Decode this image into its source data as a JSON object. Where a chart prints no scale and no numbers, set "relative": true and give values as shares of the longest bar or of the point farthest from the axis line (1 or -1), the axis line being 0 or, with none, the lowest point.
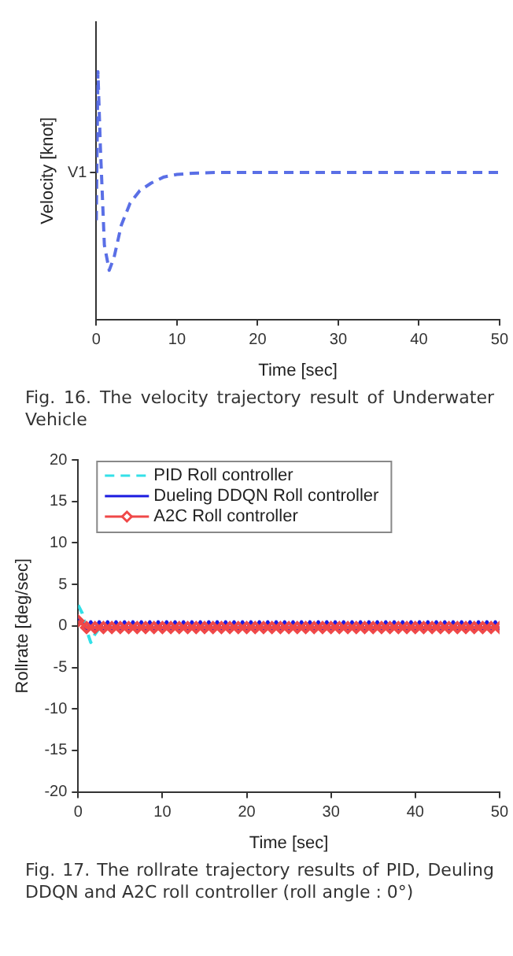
{
  "chart_data": [
    {
      "type": "line",
      "relative": true,
      "xlabel": "Time [sec]",
      "ylabel": "Velocity [knot]",
      "xlim": [
        0,
        50
      ],
      "xticks": [
        0,
        10,
        20,
        30,
        40,
        50
      ],
      "grid": false,
      "legend": false,
      "line_style": "dashed",
      "marker": "none",
      "annotations": [
        "V1",
        "Fig. 16. The velocity trajectory result of Underwater Vehicle"
      ],
      "series": [
        {
          "color": "#5a6fe6",
          "x": [
            0,
            0.2,
            0.5,
            1.0,
            1.6,
            2.2,
            3.1,
            4.2,
            5.4,
            6.8,
            8.4,
            10,
            12,
            15,
            20,
            30,
            40,
            50
          ],
          "values": [
            0.4,
            1.0,
            0.7,
            0.3,
            0.198,
            0.25,
            0.38,
            0.47,
            0.52,
            0.55,
            0.575,
            0.585,
            0.59,
            0.593,
            0.593,
            0.593,
            0.593,
            0.593
          ]
        }
      ]
    },
    {
      "type": "line",
      "xlabel": "Time [sec]",
      "ylabel": "Rollrate [deg/sec]",
      "xlim": [
        0,
        50
      ],
      "xticks": [
        0,
        10,
        20,
        30,
        40,
        50
      ],
      "ylim": [
        -20,
        20
      ],
      "yticks": [
        -20,
        -15,
        -10,
        -5,
        0,
        5,
        10,
        15,
        20
      ],
      "grid": false,
      "legend": "top left",
      "annotations": [
        "Fig. 17. The rollrate trajectory results of PID, Deuling DDQN and A2C roll controller (roll angle : 0°)"
      ],
      "series": [
        {
          "name": "PID Roll controller",
          "color": "#33e0e8",
          "line_style": "dashed",
          "marker": "none",
          "x": [
            0,
            0.5,
            1,
            1.5,
            2,
            2.5,
            3
          ],
          "values": [
            2.5,
            1.5,
            -0.5,
            -2,
            -1,
            -0.3,
            0
          ]
        },
        {
          "name": "Dueling DDQN Roll controller",
          "color": "#1a1ae0",
          "line_style": "solid",
          "marker": "none",
          "x": [
            0,
            0.5,
            1,
            1.5,
            2,
            2.5,
            3,
            3.5,
            4,
            4.5,
            5,
            5.5,
            6,
            6.5,
            7,
            7.5,
            8,
            8.5,
            9,
            9.5,
            10,
            10.5,
            11,
            11.5,
            12,
            12.5,
            13,
            13.5,
            14,
            14.5,
            15,
            15.5,
            16,
            16.5,
            17,
            17.5,
            18,
            18.5,
            19,
            19.5,
            20,
            20.5,
            21,
            21.5,
            22,
            22.5,
            23,
            23.5,
            24,
            24.5,
            25,
            25.5,
            26,
            26.5,
            27,
            27.5,
            28,
            28.5,
            29,
            29.5,
            30,
            30.5,
            31,
            31.5,
            32,
            32.5,
            33,
            33.5,
            34,
            34.5,
            35,
            35.5,
            36,
            36.5,
            37,
            37.5,
            38,
            38.5,
            39,
            39.5,
            40,
            40.5,
            41,
            41.5,
            42,
            42.5,
            43,
            43.5,
            44,
            44.5,
            45,
            45.5,
            46,
            46.5,
            47,
            47.5,
            48,
            48.5,
            49,
            49.5,
            50
          ],
          "values": [
            1.0,
            0.3,
            -0.5,
            0.5,
            -0.5,
            0.5,
            -0.5,
            0.5,
            -0.5,
            0.5,
            -0.5,
            0.5,
            -0.5,
            0.5,
            -0.5,
            0.5,
            -0.5,
            0.5,
            -0.5,
            0.5,
            -0.5,
            0.5,
            -0.5,
            0.5,
            -0.5,
            0.5,
            -0.5,
            0.5,
            -0.5,
            0.5,
            -0.5,
            0.5,
            -0.5,
            0.5,
            -0.5,
            0.5,
            -0.5,
            0.5,
            -0.5,
            0.5,
            -0.5,
            0.5,
            -0.5,
            0.5,
            -0.5,
            0.5,
            -0.5,
            0.5,
            -0.5,
            0.5,
            -0.5,
            0.5,
            -0.5,
            0.5,
            -0.5,
            0.5,
            -0.5,
            0.5,
            -0.5,
            0.5,
            -0.5,
            0.5,
            -0.5,
            0.5,
            -0.5,
            0.5,
            -0.5,
            0.5,
            -0.5,
            0.5,
            -0.5,
            0.5,
            -0.5,
            0.5,
            -0.5,
            0.5,
            -0.5,
            0.5,
            -0.5,
            0.5,
            -0.5,
            0.5,
            -0.5,
            0.5,
            -0.5,
            0.5,
            -0.5,
            0.5,
            -0.5,
            0.5,
            -0.5,
            0.5,
            -0.5,
            0.5,
            -0.5,
            0.5,
            -0.5,
            0.5,
            -0.5,
            0.5,
            -0.5
          ]
        },
        {
          "name": "A2C Roll controller",
          "color": "#f04848",
          "line_style": "solid",
          "marker": "diamond",
          "x": [
            0,
            1,
            2,
            3,
            4,
            5,
            6,
            7,
            8,
            9,
            10,
            11,
            12,
            13,
            14,
            15,
            16,
            17,
            18,
            19,
            20,
            21,
            22,
            23,
            24,
            25,
            26,
            27,
            28,
            29,
            30,
            31,
            32,
            33,
            34,
            35,
            36,
            37,
            38,
            39,
            40,
            41,
            42,
            43,
            44,
            45,
            46,
            47,
            48,
            49,
            50
          ],
          "values": [
            0.6,
            -0.2,
            -0.2,
            -0.2,
            -0.2,
            -0.2,
            -0.2,
            -0.2,
            -0.2,
            -0.2,
            -0.2,
            -0.2,
            -0.2,
            -0.2,
            -0.2,
            -0.2,
            -0.2,
            -0.2,
            -0.2,
            -0.2,
            -0.2,
            -0.2,
            -0.2,
            -0.2,
            -0.2,
            -0.2,
            -0.2,
            -0.2,
            -0.2,
            -0.2,
            -0.2,
            -0.2,
            -0.2,
            -0.2,
            -0.2,
            -0.2,
            -0.2,
            -0.2,
            -0.2,
            -0.2,
            -0.2,
            -0.2,
            -0.2,
            -0.2,
            -0.2,
            -0.2,
            -0.2,
            -0.2,
            -0.2,
            -0.2,
            -0.2
          ]
        }
      ]
    }
  ]
}
